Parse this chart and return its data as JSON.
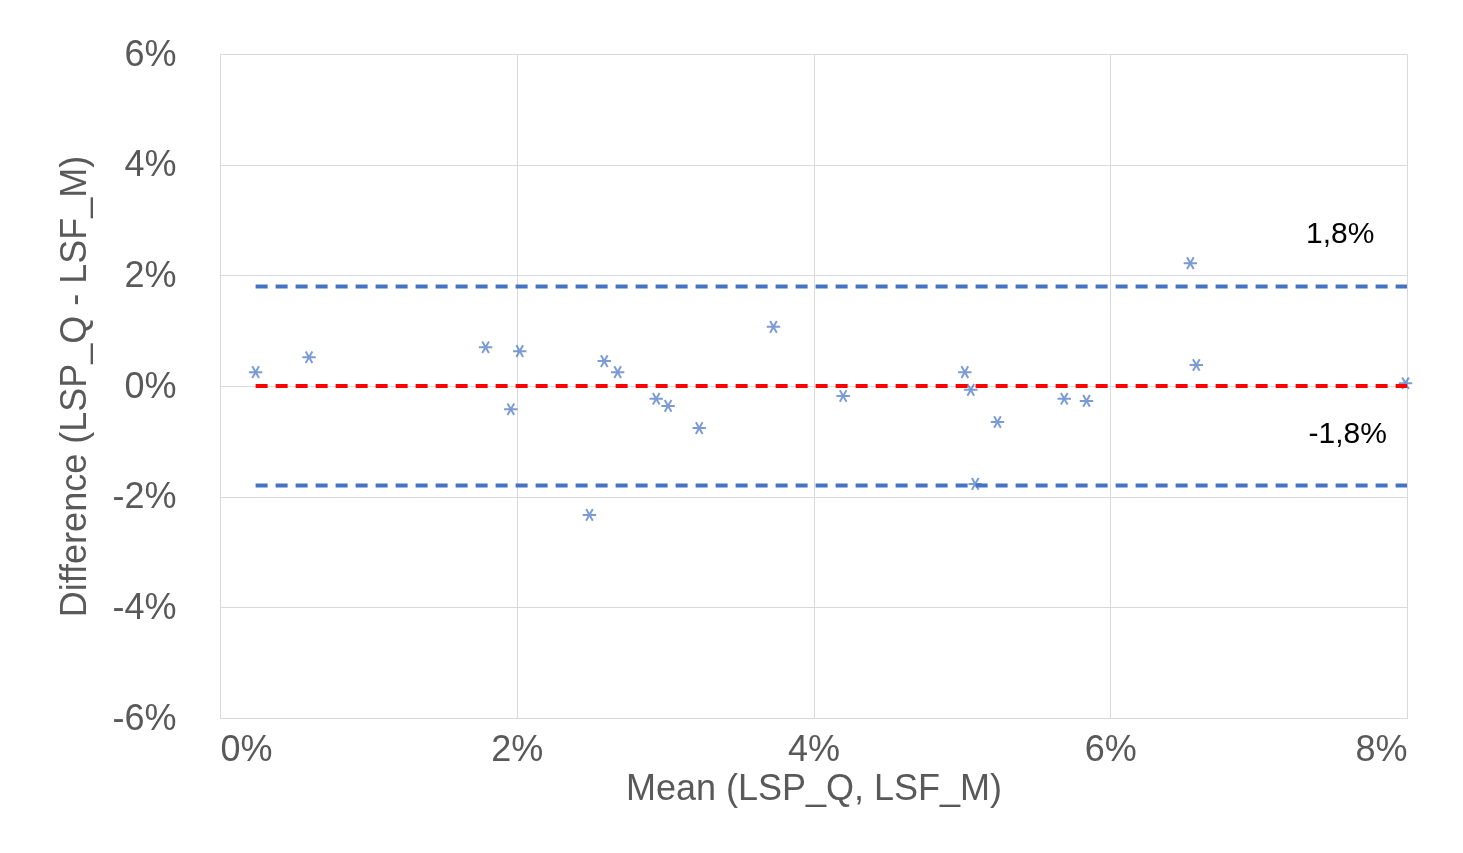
{
  "chart_data": {
    "type": "scatter",
    "xlabel": "Mean (LSP_Q, LSF_M)",
    "ylabel": "Difference  (LSP_Q - LSF_M)",
    "xlim": [
      0,
      8
    ],
    "ylim": [
      -6,
      6
    ],
    "xticks": [
      {
        "value": 0,
        "label": "0%"
      },
      {
        "value": 2,
        "label": "2%"
      },
      {
        "value": 4,
        "label": "4%"
      },
      {
        "value": 6,
        "label": "6%"
      },
      {
        "value": 8,
        "label": "8%"
      }
    ],
    "yticks": [
      {
        "value": -6,
        "label": "-6%"
      },
      {
        "value": -4,
        "label": "-4%"
      },
      {
        "value": -2,
        "label": "-2%"
      },
      {
        "value": 0,
        "label": "0%"
      },
      {
        "value": 2,
        "label": "2%"
      },
      {
        "value": 4,
        "label": "4%"
      },
      {
        "value": 6,
        "label": "6%"
      }
    ],
    "grid": true,
    "series": [
      {
        "color": "#4472c4",
        "marker": "cross",
        "x": [
          0.24,
          0.6,
          1.79,
          1.96,
          2.02,
          2.49,
          2.59,
          2.68,
          2.94,
          3.02,
          3.23,
          3.73,
          4.2,
          5.02,
          5.06,
          5.09,
          5.24,
          5.69,
          5.84,
          6.54,
          6.58,
          7.99
        ],
        "values": [
          0.25,
          0.52,
          0.7,
          -0.42,
          0.63,
          -2.33,
          0.45,
          0.25,
          -0.23,
          -0.36,
          -0.76,
          1.07,
          -0.18,
          0.25,
          -0.07,
          -1.77,
          -0.65,
          -0.23,
          -0.27,
          2.22,
          0.38,
          0.05
        ]
      },
      {
        "type": "line",
        "color": "#4472c4",
        "line_style": "dashed",
        "marker": "none",
        "x": [
          0.24,
          8
        ],
        "values": [
          1.8,
          1.8
        ]
      },
      {
        "type": "line",
        "color": "#ff0000",
        "line_style": "dashed",
        "marker": "none",
        "x": [
          0.24,
          8
        ],
        "values": [
          0,
          0
        ]
      },
      {
        "type": "line",
        "color": "#4472c4",
        "line_style": "dashed",
        "marker": "none",
        "x": [
          0.24,
          8
        ],
        "values": [
          -1.8,
          -1.8
        ]
      }
    ],
    "annotations": [
      {
        "text": "1,8%",
        "x": 7.55,
        "y": 1.8
      },
      {
        "text": "-1,8%",
        "x": 7.6,
        "y": -1.8
      }
    ]
  }
}
